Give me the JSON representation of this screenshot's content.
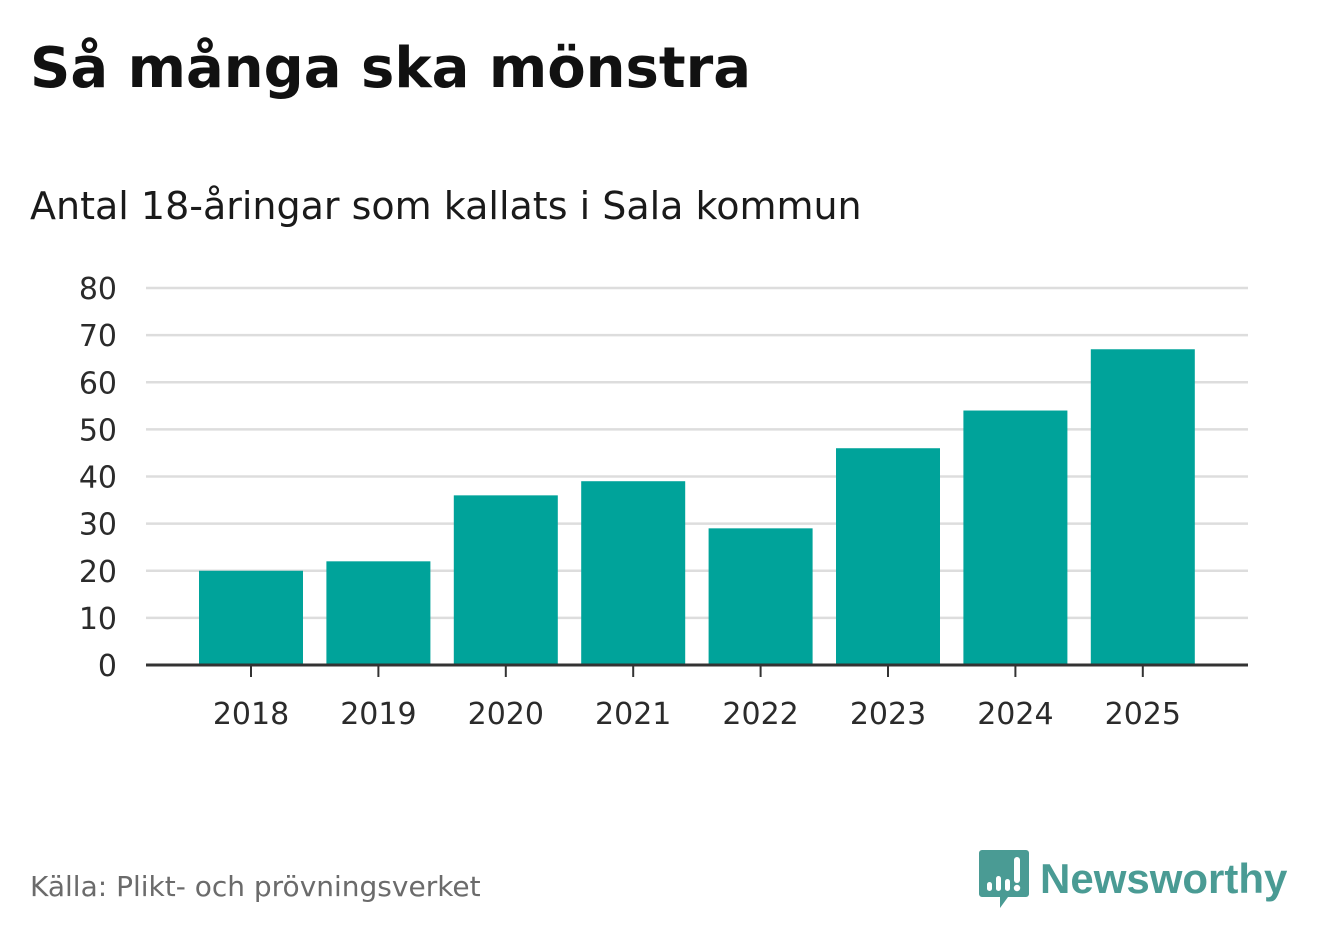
{
  "title": "Så många ska mönstra",
  "subtitle": "Antal 18-åringar som kallats i Sala kommun",
  "source": "Källa: Plikt- och prövningsverket",
  "brand": {
    "name": "Newsworthy",
    "icon": "newsworthy-logo-icon",
    "color": "#4a9b94"
  },
  "colors": {
    "bar": "#00a39a",
    "grid": "#dddddd",
    "axis": "#333333"
  },
  "chart_data": {
    "type": "bar",
    "title": "Så många ska mönstra",
    "subtitle": "Antal 18-åringar som kallats i Sala kommun",
    "xlabel": "",
    "ylabel": "",
    "categories": [
      "2018",
      "2019",
      "2020",
      "2021",
      "2022",
      "2023",
      "2024",
      "2025"
    ],
    "values": [
      20,
      22,
      36,
      39,
      29,
      46,
      54,
      67
    ],
    "ylim": [
      0,
      80
    ],
    "yticks": [
      0,
      10,
      20,
      30,
      40,
      50,
      60,
      70,
      80
    ],
    "grid": true
  }
}
